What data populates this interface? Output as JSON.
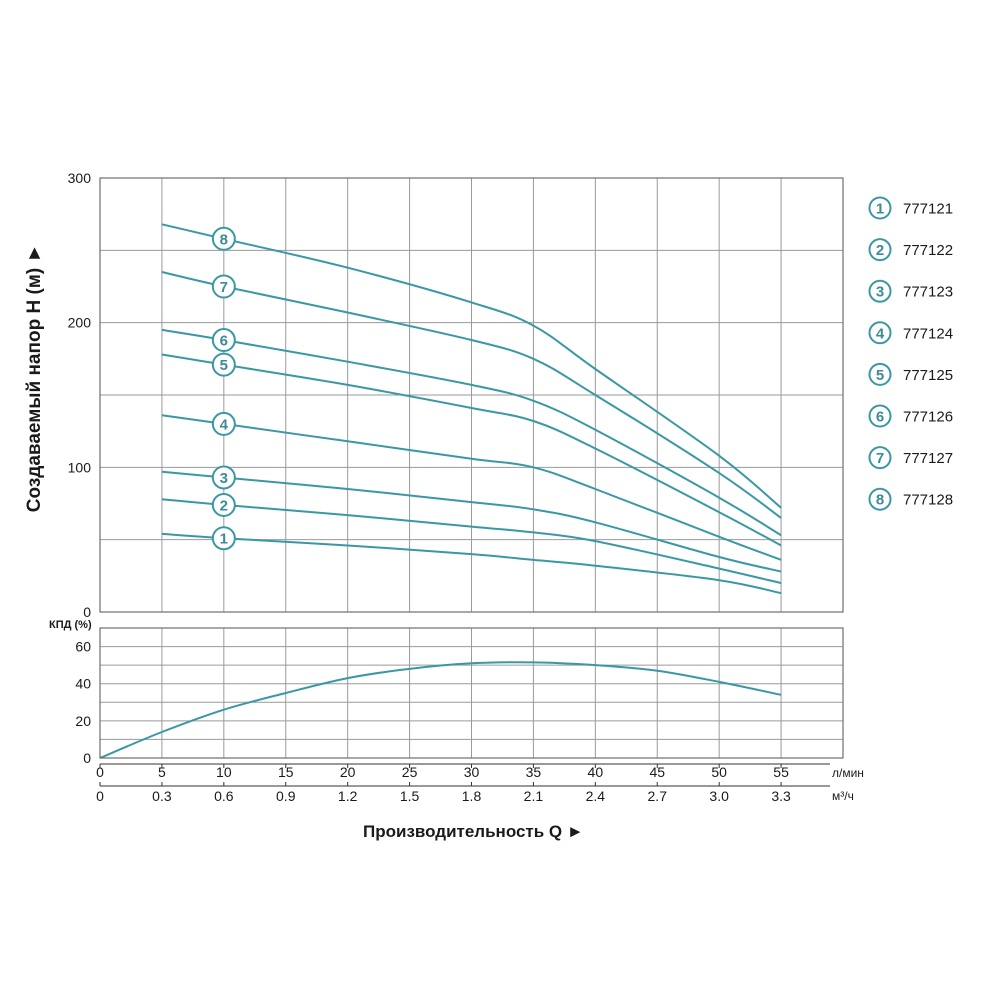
{
  "chart_data": [
    {
      "type": "line",
      "title": "",
      "ylabel": "Создаваемый напор Н (м) ►",
      "ylim": [
        0,
        300
      ],
      "yticks": [
        "0",
        "100",
        "200",
        "300"
      ],
      "xlim": [
        0,
        60
      ],
      "grid": true,
      "legend_position": "right",
      "color": "#3a98a4",
      "series": [
        {
          "name": "777121",
          "marker": "1",
          "x": [
            5,
            10,
            20,
            30,
            35,
            40,
            50,
            55
          ],
          "y": [
            54,
            51,
            46,
            40,
            36,
            32,
            22,
            13
          ]
        },
        {
          "name": "777122",
          "marker": "2",
          "x": [
            5,
            10,
            20,
            30,
            35,
            40,
            50,
            55
          ],
          "y": [
            78,
            74,
            67,
            59,
            55,
            49,
            30,
            20
          ]
        },
        {
          "name": "777123",
          "marker": "3",
          "x": [
            5,
            10,
            20,
            30,
            35,
            40,
            50,
            55
          ],
          "y": [
            97,
            93,
            85,
            76,
            71,
            62,
            38,
            28
          ]
        },
        {
          "name": "777124",
          "marker": "4",
          "x": [
            5,
            10,
            20,
            30,
            35,
            40,
            50,
            55
          ],
          "y": [
            136,
            130,
            118,
            106,
            100,
            85,
            52,
            36
          ]
        },
        {
          "name": "777125",
          "marker": "5",
          "x": [
            5,
            10,
            20,
            30,
            35,
            40,
            50,
            55
          ],
          "y": [
            178,
            171,
            157,
            141,
            132,
            113,
            69,
            46
          ]
        },
        {
          "name": "777126",
          "marker": "6",
          "x": [
            5,
            10,
            20,
            30,
            35,
            40,
            50,
            55
          ],
          "y": [
            195,
            188,
            173,
            157,
            146,
            126,
            79,
            53
          ]
        },
        {
          "name": "777127",
          "marker": "7",
          "x": [
            5,
            10,
            20,
            30,
            35,
            40,
            50,
            55
          ],
          "y": [
            235,
            225,
            207,
            188,
            175,
            150,
            96,
            65
          ]
        },
        {
          "name": "777128",
          "marker": "8",
          "x": [
            5,
            10,
            20,
            30,
            35,
            40,
            50,
            55
          ],
          "y": [
            268,
            258,
            238,
            214,
            198,
            168,
            108,
            72
          ]
        }
      ]
    },
    {
      "type": "line",
      "ylabel": "КПД (%)",
      "ylim": [
        0,
        70
      ],
      "yticks": [
        "0",
        "20",
        "40",
        "60"
      ],
      "xlabel": "Производительность Q ►",
      "x_unit_primary": "л/мин",
      "x_unit_secondary": "м³/ч",
      "categories_primary": [
        "0",
        "5",
        "10",
        "15",
        "20",
        "25",
        "30",
        "35",
        "40",
        "45",
        "50",
        "55"
      ],
      "categories_secondary": [
        "0",
        "0.3",
        "0.6",
        "0.9",
        "1.2",
        "1.5",
        "1.8",
        "2.1",
        "2.4",
        "2.7",
        "3.0",
        "3.3"
      ],
      "grid": true,
      "series": [
        {
          "x": [
            0,
            5,
            10,
            15,
            20,
            25,
            30,
            35,
            40,
            45,
            50,
            55
          ],
          "y": [
            0,
            14,
            26,
            35,
            43,
            48,
            51,
            51.5,
            50,
            47,
            41,
            34
          ]
        }
      ]
    }
  ]
}
